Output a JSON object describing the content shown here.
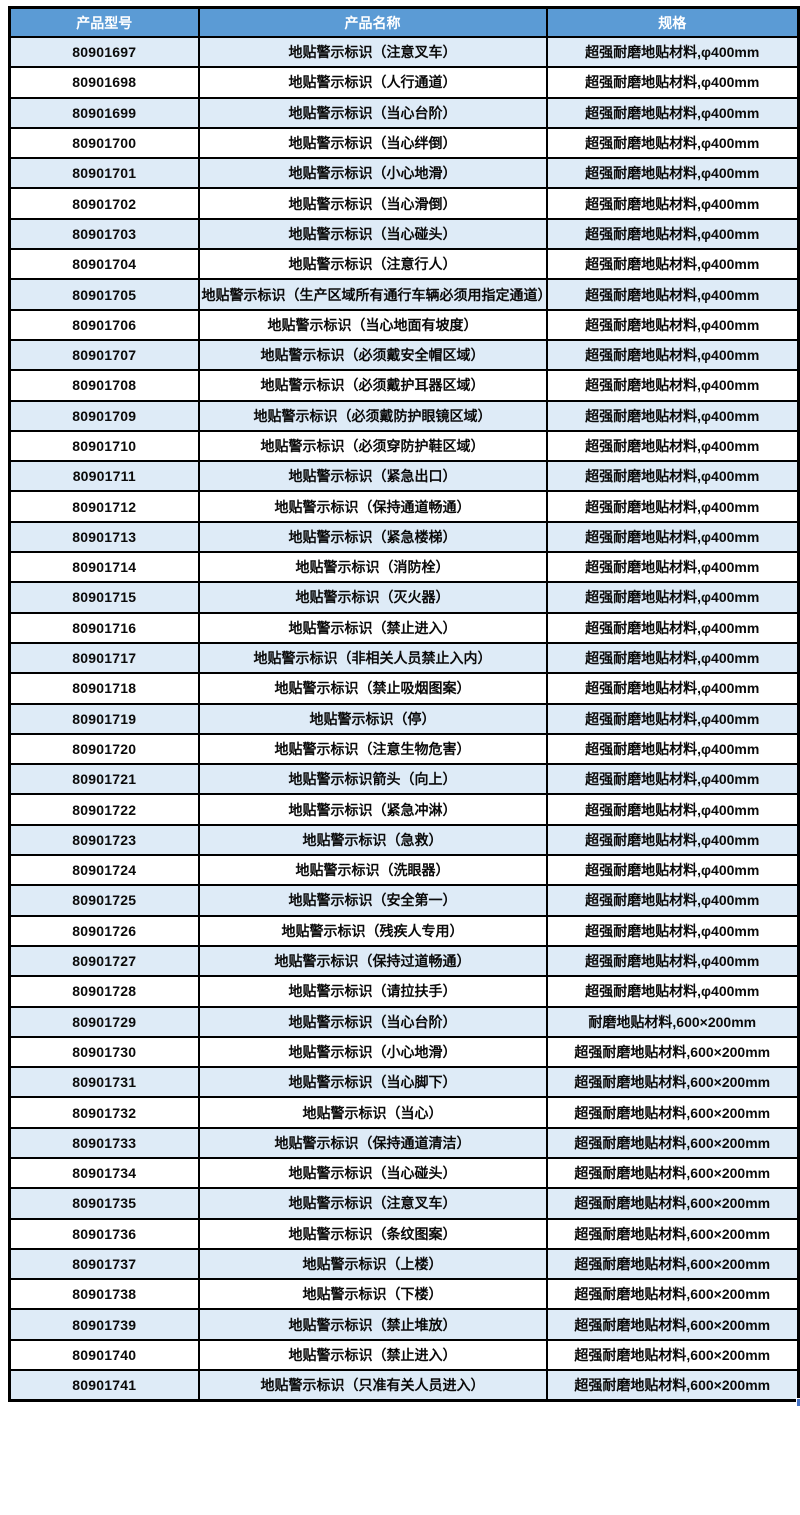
{
  "colors": {
    "header_bg": "#5B9BD5",
    "header_text": "#FFFFFF",
    "band_row_bg": "#DEEBF7",
    "plain_row_bg": "#FFFFFF",
    "gridline": "#000000",
    "fill_handle": "#4472C4"
  },
  "table": {
    "columns": [
      "产品型号",
      "产品名称",
      "规格"
    ],
    "rows": [
      [
        "80901697",
        "地贴警示标识（注意叉车）",
        "超强耐磨地贴材料,φ400mm"
      ],
      [
        "80901698",
        "地贴警示标识（人行通道）",
        "超强耐磨地贴材料,φ400mm"
      ],
      [
        "80901699",
        "地贴警示标识（当心台阶）",
        "超强耐磨地贴材料,φ400mm"
      ],
      [
        "80901700",
        "地贴警示标识（当心绊倒）",
        "超强耐磨地贴材料,φ400mm"
      ],
      [
        "80901701",
        "地贴警示标识（小心地滑）",
        "超强耐磨地贴材料,φ400mm"
      ],
      [
        "80901702",
        "地贴警示标识（当心滑倒）",
        "超强耐磨地贴材料,φ400mm"
      ],
      [
        "80901703",
        "地贴警示标识（当心碰头）",
        "超强耐磨地贴材料,φ400mm"
      ],
      [
        "80901704",
        "地贴警示标识（注意行人）",
        "超强耐磨地贴材料,φ400mm"
      ],
      [
        "80901705",
        "地贴警示标识（生产区域所有通行车辆必须用指定通道）",
        "超强耐磨地贴材料,φ400mm"
      ],
      [
        "80901706",
        "地贴警示标识（当心地面有坡度）",
        "超强耐磨地贴材料,φ400mm"
      ],
      [
        "80901707",
        "地贴警示标识（必须戴安全帽区域）",
        "超强耐磨地贴材料,φ400mm"
      ],
      [
        "80901708",
        "地贴警示标识（必须戴护耳器区域）",
        "超强耐磨地贴材料,φ400mm"
      ],
      [
        "80901709",
        "地贴警示标识（必须戴防护眼镜区域）",
        "超强耐磨地贴材料,φ400mm"
      ],
      [
        "80901710",
        "地贴警示标识（必须穿防护鞋区域）",
        "超强耐磨地贴材料,φ400mm"
      ],
      [
        "80901711",
        "地贴警示标识（紧急出口）",
        "超强耐磨地贴材料,φ400mm"
      ],
      [
        "80901712",
        "地贴警示标识（保持通道畅通）",
        "超强耐磨地贴材料,φ400mm"
      ],
      [
        "80901713",
        "地贴警示标识（紧急楼梯）",
        "超强耐磨地贴材料,φ400mm"
      ],
      [
        "80901714",
        "地贴警示标识（消防栓）",
        "超强耐磨地贴材料,φ400mm"
      ],
      [
        "80901715",
        "地贴警示标识（灭火器）",
        "超强耐磨地贴材料,φ400mm"
      ],
      [
        "80901716",
        "地贴警示标识（禁止进入）",
        "超强耐磨地贴材料,φ400mm"
      ],
      [
        "80901717",
        "地贴警示标识（非相关人员禁止入内）",
        "超强耐磨地贴材料,φ400mm"
      ],
      [
        "80901718",
        "地贴警示标识（禁止吸烟图案）",
        "超强耐磨地贴材料,φ400mm"
      ],
      [
        "80901719",
        "地贴警示标识（停）",
        "超强耐磨地贴材料,φ400mm"
      ],
      [
        "80901720",
        "地贴警示标识（注意生物危害）",
        "超强耐磨地贴材料,φ400mm"
      ],
      [
        "80901721",
        "地贴警示标识箭头（向上）",
        "超强耐磨地贴材料,φ400mm"
      ],
      [
        "80901722",
        "地贴警示标识（紧急冲淋）",
        "超强耐磨地贴材料,φ400mm"
      ],
      [
        "80901723",
        "地贴警示标识（急救）",
        "超强耐磨地贴材料,φ400mm"
      ],
      [
        "80901724",
        "地贴警示标识（洗眼器）",
        "超强耐磨地贴材料,φ400mm"
      ],
      [
        "80901725",
        "地贴警示标识（安全第一）",
        "超强耐磨地贴材料,φ400mm"
      ],
      [
        "80901726",
        "地贴警示标识（残疾人专用）",
        "超强耐磨地贴材料,φ400mm"
      ],
      [
        "80901727",
        "地贴警示标识（保持过道畅通）",
        "超强耐磨地贴材料,φ400mm"
      ],
      [
        "80901728",
        "地贴警示标识（请拉扶手）",
        "超强耐磨地贴材料,φ400mm"
      ],
      [
        "80901729",
        "地贴警示标识（当心台阶）",
        "耐磨地贴材料,600×200mm"
      ],
      [
        "80901730",
        "地贴警示标识（小心地滑）",
        "超强耐磨地贴材料,600×200mm"
      ],
      [
        "80901731",
        "地贴警示标识（当心脚下）",
        "超强耐磨地贴材料,600×200mm"
      ],
      [
        "80901732",
        "地贴警示标识（当心）",
        "超强耐磨地贴材料,600×200mm"
      ],
      [
        "80901733",
        "地贴警示标识（保持通道清洁）",
        "超强耐磨地贴材料,600×200mm"
      ],
      [
        "80901734",
        "地贴警示标识（当心碰头）",
        "超强耐磨地贴材料,600×200mm"
      ],
      [
        "80901735",
        "地贴警示标识（注意叉车）",
        "超强耐磨地贴材料,600×200mm"
      ],
      [
        "80901736",
        "地贴警示标识（条纹图案）",
        "超强耐磨地贴材料,600×200mm"
      ],
      [
        "80901737",
        "地贴警示标识（上楼）",
        "超强耐磨地贴材料,600×200mm"
      ],
      [
        "80901738",
        "地贴警示标识（下楼）",
        "超强耐磨地贴材料,600×200mm"
      ],
      [
        "80901739",
        "地贴警示标识（禁止堆放）",
        "超强耐磨地贴材料,600×200mm"
      ],
      [
        "80901740",
        "地贴警示标识（禁止进入）",
        "超强耐磨地贴材料,600×200mm"
      ],
      [
        "80901741",
        "地贴警示标识（只准有关人员进入）",
        "超强耐磨地贴材料,600×200mm"
      ]
    ]
  }
}
